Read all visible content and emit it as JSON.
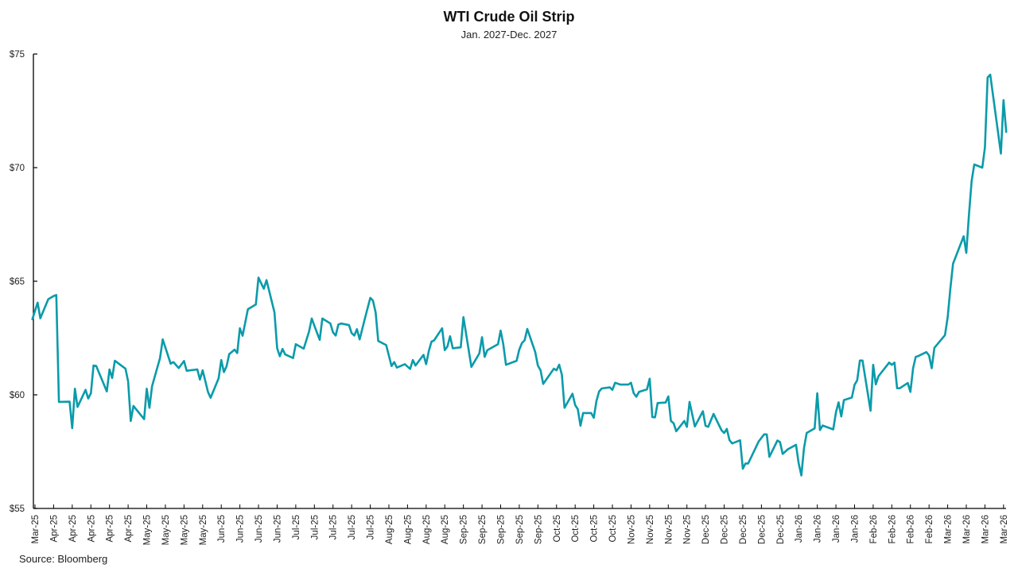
{
  "chart_data": {
    "type": "line",
    "title": "WTI Crude Oil Strip",
    "subtitle": "Jan. 2027-Dec. 2027",
    "source": "Source: Bloomberg",
    "xlabel": "",
    "ylabel": "",
    "ylim": [
      55,
      75
    ],
    "y_ticks": [
      55,
      60,
      65,
      70,
      75
    ],
    "y_tick_labels": [
      "$55",
      "$60",
      "$65",
      "$70",
      "$75"
    ],
    "x_range": [
      "2025-03-24",
      "2026-03-25"
    ],
    "x_tick_start": "2025-03-25",
    "x_tick_interval_days": 7,
    "x_tick_labels": [
      "Mar-25",
      "Apr-25",
      "Apr-25",
      "Apr-25",
      "Apr-25",
      "Apr-25",
      "May-25",
      "May-25",
      "May-25",
      "May-25",
      "Jun-25",
      "Jun-25",
      "Jun-25",
      "Jun-25",
      "Jul-25",
      "Jul-25",
      "Jul-25",
      "Jul-25",
      "Jul-25",
      "Aug-25",
      "Aug-25",
      "Aug-25",
      "Aug-25",
      "Sep-25",
      "Sep-25",
      "Sep-25",
      "Sep-25",
      "Sep-25",
      "Oct-25",
      "Oct-25",
      "Oct-25",
      "Oct-25",
      "Nov-25",
      "Nov-25",
      "Nov-25",
      "Nov-25",
      "Dec-25",
      "Dec-25",
      "Dec-25",
      "Dec-25",
      "Dec-25",
      "Jan-26",
      "Jan-26",
      "Jan-26",
      "Jan-26",
      "Feb-26",
      "Feb-26",
      "Feb-26",
      "Feb-26",
      "Mar-26",
      "Mar-26",
      "Mar-26",
      "Mar-26"
    ],
    "grid": false,
    "legend": "none",
    "line_color": "#0A9BAA",
    "series": [
      {
        "points": [
          [
            "2025-03-24",
            63.33
          ],
          [
            "2025-03-26",
            64.06
          ],
          [
            "2025-03-27",
            63.37
          ],
          [
            "2025-03-30",
            64.21
          ],
          [
            "2025-04-01",
            64.35
          ],
          [
            "2025-04-02",
            64.39
          ],
          [
            "2025-04-03",
            59.69
          ],
          [
            "2025-04-07",
            59.7
          ],
          [
            "2025-04-08",
            58.53
          ],
          [
            "2025-04-09",
            60.27
          ],
          [
            "2025-04-10",
            59.47
          ],
          [
            "2025-04-13",
            60.22
          ],
          [
            "2025-04-14",
            59.84
          ],
          [
            "2025-04-15",
            60.07
          ],
          [
            "2025-04-16",
            61.29
          ],
          [
            "2025-04-17",
            61.27
          ],
          [
            "2025-04-21",
            60.15
          ],
          [
            "2025-04-22",
            61.12
          ],
          [
            "2025-04-23",
            60.74
          ],
          [
            "2025-04-24",
            61.5
          ],
          [
            "2025-04-28",
            61.15
          ],
          [
            "2025-04-29",
            60.59
          ],
          [
            "2025-04-30",
            58.85
          ],
          [
            "2025-05-01",
            59.51
          ],
          [
            "2025-05-05",
            58.93
          ],
          [
            "2025-05-06",
            60.27
          ],
          [
            "2025-05-07",
            59.43
          ],
          [
            "2025-05-08",
            60.38
          ],
          [
            "2025-05-11",
            61.62
          ],
          [
            "2025-05-12",
            62.44
          ],
          [
            "2025-05-15",
            61.37
          ],
          [
            "2025-05-16",
            61.44
          ],
          [
            "2025-05-18",
            61.18
          ],
          [
            "2025-05-20",
            61.49
          ],
          [
            "2025-05-21",
            61.06
          ],
          [
            "2025-05-25",
            61.12
          ],
          [
            "2025-05-26",
            60.67
          ],
          [
            "2025-05-27",
            61.08
          ],
          [
            "2025-05-29",
            60.13
          ],
          [
            "2025-05-30",
            59.87
          ],
          [
            "2025-06-02",
            60.73
          ],
          [
            "2025-06-03",
            61.53
          ],
          [
            "2025-06-04",
            61.0
          ],
          [
            "2025-06-05",
            61.26
          ],
          [
            "2025-06-06",
            61.79
          ],
          [
            "2025-06-08",
            61.99
          ],
          [
            "2025-06-09",
            61.84
          ],
          [
            "2025-06-10",
            62.93
          ],
          [
            "2025-06-11",
            62.6
          ],
          [
            "2025-06-13",
            63.77
          ],
          [
            "2025-06-16",
            63.98
          ],
          [
            "2025-06-17",
            65.16
          ],
          [
            "2025-06-19",
            64.67
          ],
          [
            "2025-06-20",
            65.05
          ],
          [
            "2025-06-23",
            63.63
          ],
          [
            "2025-06-24",
            62.05
          ],
          [
            "2025-06-25",
            61.7
          ],
          [
            "2025-06-26",
            62.02
          ],
          [
            "2025-06-27",
            61.78
          ],
          [
            "2025-06-30",
            61.62
          ],
          [
            "2025-07-01",
            62.23
          ],
          [
            "2025-07-04",
            62.03
          ],
          [
            "2025-07-06",
            62.79
          ],
          [
            "2025-07-07",
            63.36
          ],
          [
            "2025-07-08",
            63.04
          ],
          [
            "2025-07-10",
            62.42
          ],
          [
            "2025-07-11",
            63.36
          ],
          [
            "2025-07-14",
            63.14
          ],
          [
            "2025-07-15",
            62.75
          ],
          [
            "2025-07-16",
            62.61
          ],
          [
            "2025-07-17",
            63.09
          ],
          [
            "2025-07-18",
            63.14
          ],
          [
            "2025-07-21",
            63.07
          ],
          [
            "2025-07-22",
            62.72
          ],
          [
            "2025-07-23",
            62.61
          ],
          [
            "2025-07-24",
            62.89
          ],
          [
            "2025-07-25",
            62.44
          ],
          [
            "2025-07-27",
            63.37
          ],
          [
            "2025-07-29",
            64.27
          ],
          [
            "2025-07-30",
            64.15
          ],
          [
            "2025-07-31",
            63.63
          ],
          [
            "2025-08-01",
            62.37
          ],
          [
            "2025-08-04",
            62.19
          ],
          [
            "2025-08-06",
            61.27
          ],
          [
            "2025-08-07",
            61.44
          ],
          [
            "2025-08-08",
            61.2
          ],
          [
            "2025-08-11",
            61.35
          ],
          [
            "2025-08-13",
            61.14
          ],
          [
            "2025-08-14",
            61.53
          ],
          [
            "2025-08-15",
            61.29
          ],
          [
            "2025-08-18",
            61.76
          ],
          [
            "2025-08-19",
            61.35
          ],
          [
            "2025-08-20",
            61.93
          ],
          [
            "2025-08-21",
            62.34
          ],
          [
            "2025-08-22",
            62.4
          ],
          [
            "2025-08-25",
            62.93
          ],
          [
            "2025-08-26",
            61.97
          ],
          [
            "2025-08-27",
            62.13
          ],
          [
            "2025-08-28",
            62.58
          ],
          [
            "2025-08-29",
            62.05
          ],
          [
            "2025-09-01",
            62.09
          ],
          [
            "2025-09-02",
            63.42
          ],
          [
            "2025-09-05",
            61.23
          ],
          [
            "2025-09-08",
            61.82
          ],
          [
            "2025-09-09",
            62.54
          ],
          [
            "2025-09-10",
            61.67
          ],
          [
            "2025-09-11",
            61.97
          ],
          [
            "2025-09-15",
            62.23
          ],
          [
            "2025-09-16",
            62.83
          ],
          [
            "2025-09-17",
            62.23
          ],
          [
            "2025-09-18",
            61.32
          ],
          [
            "2025-09-22",
            61.5
          ],
          [
            "2025-09-23",
            61.99
          ],
          [
            "2025-09-24",
            62.28
          ],
          [
            "2025-09-25",
            62.4
          ],
          [
            "2025-09-26",
            62.9
          ],
          [
            "2025-09-29",
            61.88
          ],
          [
            "2025-09-30",
            61.29
          ],
          [
            "2025-10-01",
            61.08
          ],
          [
            "2025-10-02",
            60.48
          ],
          [
            "2025-10-06",
            61.15
          ],
          [
            "2025-10-07",
            61.08
          ],
          [
            "2025-10-08",
            61.33
          ],
          [
            "2025-10-09",
            60.88
          ],
          [
            "2025-10-10",
            59.43
          ],
          [
            "2025-10-13",
            60.05
          ],
          [
            "2025-10-14",
            59.55
          ],
          [
            "2025-10-15",
            59.37
          ],
          [
            "2025-10-16",
            58.64
          ],
          [
            "2025-10-17",
            59.2
          ],
          [
            "2025-10-20",
            59.2
          ],
          [
            "2025-10-21",
            58.99
          ],
          [
            "2025-10-22",
            59.72
          ],
          [
            "2025-10-23",
            60.15
          ],
          [
            "2025-10-24",
            60.28
          ],
          [
            "2025-10-27",
            60.33
          ],
          [
            "2025-10-28",
            60.22
          ],
          [
            "2025-10-29",
            60.53
          ],
          [
            "2025-10-31",
            60.45
          ],
          [
            "2025-11-03",
            60.45
          ],
          [
            "2025-11-04",
            60.53
          ],
          [
            "2025-11-05",
            60.07
          ],
          [
            "2025-11-06",
            59.92
          ],
          [
            "2025-11-07",
            60.13
          ],
          [
            "2025-11-10",
            60.24
          ],
          [
            "2025-11-11",
            60.71
          ],
          [
            "2025-11-12",
            59.02
          ],
          [
            "2025-11-13",
            59.01
          ],
          [
            "2025-11-14",
            59.64
          ],
          [
            "2025-11-17",
            59.66
          ],
          [
            "2025-11-18",
            59.93
          ],
          [
            "2025-11-19",
            58.85
          ],
          [
            "2025-11-20",
            58.75
          ],
          [
            "2025-11-21",
            58.4
          ],
          [
            "2025-11-24",
            58.85
          ],
          [
            "2025-11-25",
            58.59
          ],
          [
            "2025-11-26",
            59.69
          ],
          [
            "2025-11-28",
            58.61
          ],
          [
            "2025-12-01",
            59.28
          ],
          [
            "2025-12-02",
            58.64
          ],
          [
            "2025-12-03",
            58.59
          ],
          [
            "2025-12-05",
            59.16
          ],
          [
            "2025-12-08",
            58.44
          ],
          [
            "2025-12-09",
            58.32
          ],
          [
            "2025-12-10",
            58.5
          ],
          [
            "2025-12-11",
            58.01
          ],
          [
            "2025-12-12",
            57.86
          ],
          [
            "2025-12-15",
            58.0
          ],
          [
            "2025-12-16",
            56.75
          ],
          [
            "2025-12-17",
            56.98
          ],
          [
            "2025-12-18",
            56.98
          ],
          [
            "2025-12-22",
            57.95
          ],
          [
            "2025-12-24",
            58.26
          ],
          [
            "2025-12-25",
            58.26
          ],
          [
            "2025-12-26",
            57.27
          ],
          [
            "2025-12-29",
            57.99
          ],
          [
            "2025-12-30",
            57.92
          ],
          [
            "2025-12-31",
            57.4
          ],
          [
            "2026-01-02",
            57.61
          ],
          [
            "2026-01-05",
            57.8
          ],
          [
            "2026-01-06",
            56.99
          ],
          [
            "2026-01-07",
            56.45
          ],
          [
            "2026-01-08",
            57.65
          ],
          [
            "2026-01-09",
            58.32
          ],
          [
            "2026-01-12",
            58.52
          ],
          [
            "2026-01-13",
            60.07
          ],
          [
            "2026-01-14",
            58.45
          ],
          [
            "2026-01-15",
            58.65
          ],
          [
            "2026-01-19",
            58.48
          ],
          [
            "2026-01-20",
            59.23
          ],
          [
            "2026-01-21",
            59.67
          ],
          [
            "2026-01-22",
            59.05
          ],
          [
            "2026-01-23",
            59.77
          ],
          [
            "2026-01-26",
            59.88
          ],
          [
            "2026-01-27",
            60.44
          ],
          [
            "2026-01-28",
            60.64
          ],
          [
            "2026-01-29",
            61.51
          ],
          [
            "2026-01-30",
            61.51
          ],
          [
            "2026-02-02",
            59.3
          ],
          [
            "2026-02-03",
            61.32
          ],
          [
            "2026-02-04",
            60.46
          ],
          [
            "2026-02-05",
            60.82
          ],
          [
            "2026-02-09",
            61.42
          ],
          [
            "2026-02-10",
            61.32
          ],
          [
            "2026-02-11",
            61.42
          ],
          [
            "2026-02-12",
            60.29
          ],
          [
            "2026-02-13",
            60.29
          ],
          [
            "2026-02-16",
            60.52
          ],
          [
            "2026-02-17",
            60.13
          ],
          [
            "2026-02-18",
            61.17
          ],
          [
            "2026-02-19",
            61.67
          ],
          [
            "2026-02-20",
            61.71
          ],
          [
            "2026-02-23",
            61.88
          ],
          [
            "2026-02-24",
            61.73
          ],
          [
            "2026-02-25",
            61.17
          ],
          [
            "2026-02-26",
            62.07
          ],
          [
            "2026-03-02",
            62.63
          ],
          [
            "2026-03-03",
            63.42
          ],
          [
            "2026-03-04",
            64.66
          ],
          [
            "2026-03-05",
            65.77
          ],
          [
            "2026-03-09",
            66.98
          ],
          [
            "2026-03-10",
            66.25
          ],
          [
            "2026-03-11",
            67.91
          ],
          [
            "2026-03-12",
            69.41
          ],
          [
            "2026-03-13",
            70.14
          ],
          [
            "2026-03-16",
            70.0
          ],
          [
            "2026-03-17",
            70.88
          ],
          [
            "2026-03-18",
            73.97
          ],
          [
            "2026-03-19",
            74.09
          ],
          [
            "2026-03-23",
            70.62
          ],
          [
            "2026-03-24",
            72.97
          ],
          [
            "2026-03-25",
            71.57
          ]
        ]
      }
    ]
  }
}
